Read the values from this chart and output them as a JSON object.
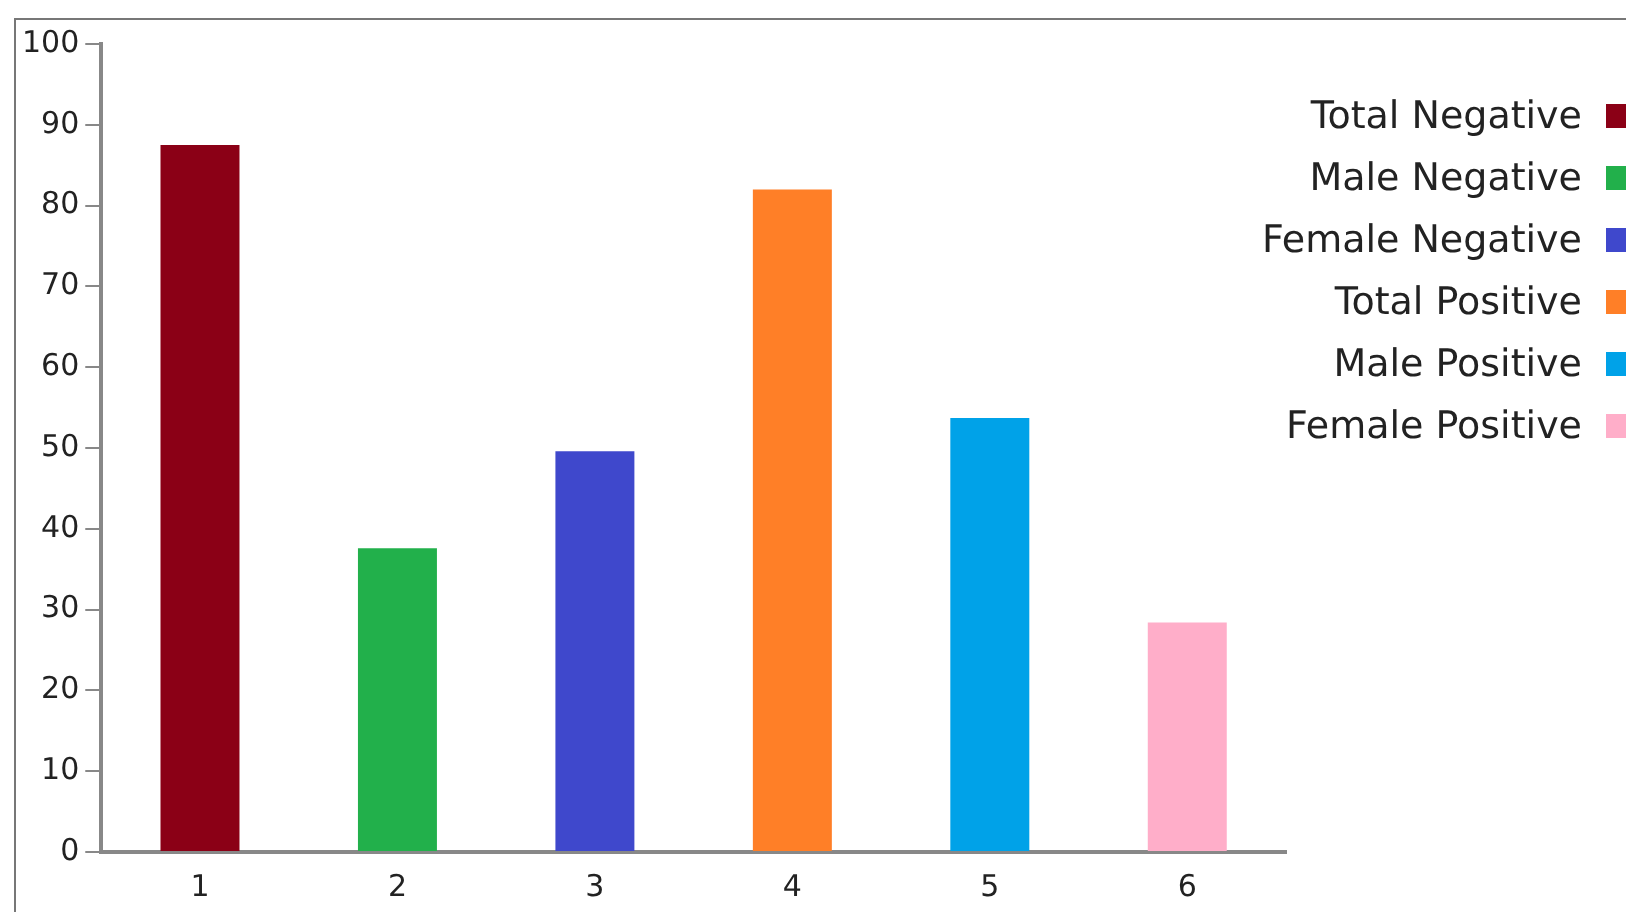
{
  "chart_data": {
    "type": "bar",
    "categories": [
      "1",
      "2",
      "3",
      "4",
      "5",
      "6"
    ],
    "series": [
      {
        "name": "Total Negative",
        "color": "#8b0016",
        "values": [
          87.5,
          null,
          null,
          null,
          null,
          null
        ]
      },
      {
        "name": "Male Negative",
        "color": "#22b04b",
        "values": [
          null,
          37.6,
          null,
          null,
          null,
          null
        ]
      },
      {
        "name": "Female Negative",
        "color": "#3f48cc",
        "values": [
          null,
          null,
          49.6,
          null,
          null,
          null
        ]
      },
      {
        "name": "Total Positive",
        "color": "#ff7f27",
        "values": [
          null,
          null,
          null,
          82,
          null,
          null
        ]
      },
      {
        "name": "Male Positive",
        "color": "#00a2e8",
        "values": [
          null,
          null,
          null,
          null,
          53.7,
          null
        ]
      },
      {
        "name": "Female Positive",
        "color": "#ffaec9",
        "values": [
          null,
          null,
          null,
          null,
          null,
          28.4
        ]
      }
    ],
    "ylim": [
      0,
      100
    ],
    "yticks": [
      0,
      10,
      20,
      30,
      40,
      50,
      60,
      70,
      80,
      90,
      100
    ],
    "grid": false,
    "legend": "top right"
  }
}
